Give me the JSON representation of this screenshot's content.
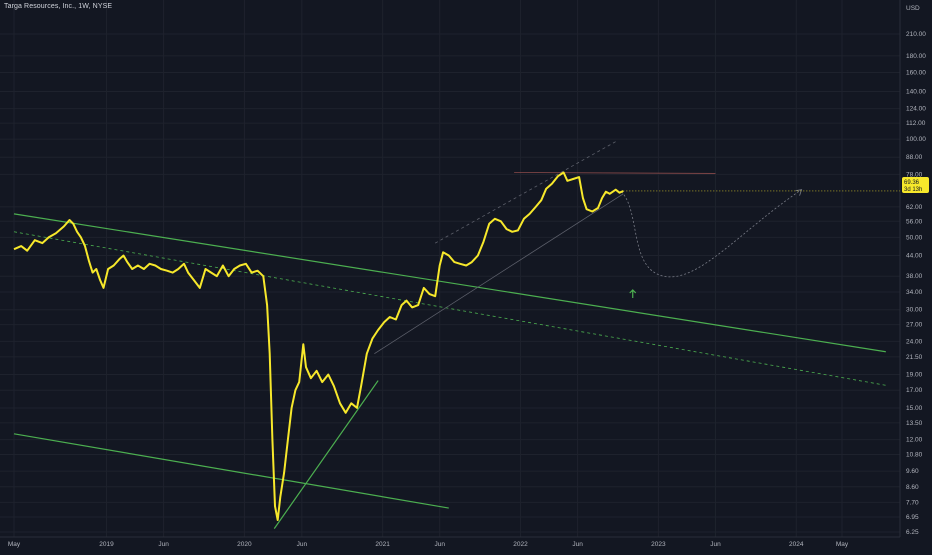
{
  "header": {
    "symbol_title": "Targa Resources, Inc., 1W, NYSE"
  },
  "price_axis": {
    "currency": "USD",
    "last_price": "69.36",
    "countdown": "3d 13h",
    "tag_color": "#f7e82b"
  },
  "chart_data": {
    "type": "line",
    "title": "Targa Resources, Inc., 1W, NYSE",
    "y_scale": "log",
    "ylim": [
      6.25,
      210
    ],
    "y_ticks": [
      210,
      180,
      160,
      140,
      124,
      112,
      100,
      88,
      78,
      62,
      56,
      50,
      44,
      38,
      34,
      30,
      27,
      24,
      21.5,
      19,
      17,
      15,
      13.5,
      12,
      10.8,
      9.6,
      8.6,
      7.7,
      6.95,
      6.25
    ],
    "y_tick_labels": [
      "210.00",
      "180.00",
      "160.00",
      "140.00",
      "124.00",
      "112.00",
      "100.00",
      "88.00",
      "78.00",
      "62.00",
      "56.00",
      "50.00",
      "44.00",
      "38.00",
      "34.00",
      "30.00",
      "27.00",
      "24.00",
      "21.50",
      "19.00",
      "17.00",
      "15.00",
      "13.50",
      "12.00",
      "10.80",
      "9.60",
      "8.60",
      "7.70",
      "6.95",
      "6.25"
    ],
    "xlim": [
      "2018-05-01",
      "2024-09-01"
    ],
    "x_ticks": [
      {
        "date": "2018-05-01",
        "label": "May"
      },
      {
        "date": "2019-01-01",
        "label": "2019"
      },
      {
        "date": "2019-06-01",
        "label": "Jun"
      },
      {
        "date": "2020-01-01",
        "label": "2020"
      },
      {
        "date": "2020-06-01",
        "label": "Jun"
      },
      {
        "date": "2021-01-01",
        "label": "2021"
      },
      {
        "date": "2021-06-01",
        "label": "Jun"
      },
      {
        "date": "2022-01-01",
        "label": "2022"
      },
      {
        "date": "2022-06-01",
        "label": "Jun"
      },
      {
        "date": "2023-01-01",
        "label": "2023"
      },
      {
        "date": "2023-06-01",
        "label": "Jun"
      },
      {
        "date": "2024-01-01",
        "label": "2024"
      },
      {
        "date": "2024-05-01",
        "label": "May"
      }
    ],
    "grid": true,
    "series": [
      {
        "color": "#f7e82b",
        "points": [
          [
            "2018-05-01",
            46
          ],
          [
            "2018-05-20",
            47
          ],
          [
            "2018-06-05",
            45.5
          ],
          [
            "2018-06-25",
            49
          ],
          [
            "2018-07-15",
            48
          ],
          [
            "2018-08-01",
            50
          ],
          [
            "2018-08-20",
            51.5
          ],
          [
            "2018-09-10",
            54
          ],
          [
            "2018-09-25",
            56.5
          ],
          [
            "2018-10-05",
            55
          ],
          [
            "2018-10-15",
            52
          ],
          [
            "2018-10-25",
            50
          ],
          [
            "2018-11-05",
            47
          ],
          [
            "2018-11-15",
            42.5
          ],
          [
            "2018-11-25",
            39
          ],
          [
            "2018-12-05",
            40
          ],
          [
            "2018-12-15",
            37
          ],
          [
            "2018-12-24",
            35
          ],
          [
            "2019-01-05",
            40
          ],
          [
            "2019-01-20",
            41
          ],
          [
            "2019-02-05",
            43
          ],
          [
            "2019-02-15",
            44
          ],
          [
            "2019-02-25",
            42
          ],
          [
            "2019-03-10",
            40
          ],
          [
            "2019-03-25",
            41
          ],
          [
            "2019-04-10",
            40
          ],
          [
            "2019-04-25",
            41.5
          ],
          [
            "2019-05-10",
            41
          ],
          [
            "2019-05-25",
            40
          ],
          [
            "2019-06-10",
            39.5
          ],
          [
            "2019-06-25",
            39
          ],
          [
            "2019-07-10",
            40
          ],
          [
            "2019-07-25",
            41.5
          ],
          [
            "2019-08-05",
            39
          ],
          [
            "2019-08-20",
            37
          ],
          [
            "2019-09-05",
            35
          ],
          [
            "2019-09-20",
            40
          ],
          [
            "2019-10-05",
            39
          ],
          [
            "2019-10-20",
            38
          ],
          [
            "2019-11-05",
            41
          ],
          [
            "2019-11-20",
            38
          ],
          [
            "2019-12-05",
            40
          ],
          [
            "2019-12-20",
            41
          ],
          [
            "2020-01-05",
            41.5
          ],
          [
            "2020-01-20",
            39
          ],
          [
            "2020-02-05",
            39.5
          ],
          [
            "2020-02-20",
            38
          ],
          [
            "2020-03-01",
            31
          ],
          [
            "2020-03-08",
            22
          ],
          [
            "2020-03-15",
            12
          ],
          [
            "2020-03-22",
            7.5
          ],
          [
            "2020-03-29",
            6.8
          ],
          [
            "2020-04-05",
            8
          ],
          [
            "2020-04-15",
            9.5
          ],
          [
            "2020-04-25",
            12
          ],
          [
            "2020-05-05",
            15
          ],
          [
            "2020-05-15",
            17
          ],
          [
            "2020-05-25",
            18
          ],
          [
            "2020-06-05",
            23.5
          ],
          [
            "2020-06-12",
            20
          ],
          [
            "2020-06-25",
            18.5
          ],
          [
            "2020-07-10",
            19.5
          ],
          [
            "2020-07-25",
            18
          ],
          [
            "2020-08-10",
            19
          ],
          [
            "2020-08-25",
            17.5
          ],
          [
            "2020-09-10",
            15.5
          ],
          [
            "2020-09-25",
            14.5
          ],
          [
            "2020-10-10",
            15.5
          ],
          [
            "2020-10-25",
            15
          ],
          [
            "2020-11-05",
            17.5
          ],
          [
            "2020-11-20",
            22
          ],
          [
            "2020-12-05",
            24.5
          ],
          [
            "2020-12-20",
            26
          ],
          [
            "2021-01-05",
            27.5
          ],
          [
            "2021-01-20",
            28.5
          ],
          [
            "2021-02-05",
            28
          ],
          [
            "2021-02-20",
            31
          ],
          [
            "2021-03-05",
            32
          ],
          [
            "2021-03-20",
            30.5
          ],
          [
            "2021-04-05",
            31
          ],
          [
            "2021-04-20",
            35
          ],
          [
            "2021-05-05",
            33.5
          ],
          [
            "2021-05-20",
            33
          ],
          [
            "2021-06-01",
            41
          ],
          [
            "2021-06-10",
            45
          ],
          [
            "2021-06-25",
            44
          ],
          [
            "2021-07-10",
            42
          ],
          [
            "2021-07-25",
            41.5
          ],
          [
            "2021-08-10",
            41
          ],
          [
            "2021-08-25",
            42
          ],
          [
            "2021-09-10",
            44
          ],
          [
            "2021-09-25",
            48.5
          ],
          [
            "2021-10-10",
            55
          ],
          [
            "2021-10-25",
            57
          ],
          [
            "2021-11-10",
            56
          ],
          [
            "2021-11-25",
            53
          ],
          [
            "2021-12-10",
            52
          ],
          [
            "2021-12-25",
            52.5
          ],
          [
            "2022-01-10",
            57
          ],
          [
            "2022-01-25",
            59
          ],
          [
            "2022-02-10",
            62
          ],
          [
            "2022-02-25",
            65
          ],
          [
            "2022-03-10",
            70.5
          ],
          [
            "2022-03-25",
            73
          ],
          [
            "2022-04-10",
            77
          ],
          [
            "2022-04-25",
            79
          ],
          [
            "2022-05-05",
            74.5
          ],
          [
            "2022-05-20",
            75.5
          ],
          [
            "2022-06-05",
            76.5
          ],
          [
            "2022-06-15",
            66
          ],
          [
            "2022-06-25",
            61
          ],
          [
            "2022-07-10",
            60
          ],
          [
            "2022-07-25",
            61.5
          ],
          [
            "2022-08-05",
            66
          ],
          [
            "2022-08-15",
            69
          ],
          [
            "2022-08-25",
            68
          ],
          [
            "2022-09-10",
            70
          ],
          [
            "2022-09-20",
            68.5
          ],
          [
            "2022-09-30",
            69.36
          ]
        ]
      }
    ],
    "annotations": [
      {
        "kind": "line",
        "color": "#4caf50",
        "from": [
          "2018-05-01",
          59
        ],
        "to": [
          "2024-08-25",
          22.3
        ]
      },
      {
        "kind": "line",
        "color": "#4caf50",
        "from": [
          "2018-05-01",
          12.5
        ],
        "to": [
          "2021-06-25",
          7.4
        ]
      },
      {
        "kind": "line",
        "color": "#4caf50",
        "from": [
          "2020-03-20",
          6.4
        ],
        "to": [
          "2020-12-20",
          18.2
        ]
      },
      {
        "kind": "dashed",
        "color": "#4caf50",
        "from": [
          "2018-05-01",
          52
        ],
        "to": [
          "2024-08-25",
          17.6
        ]
      },
      {
        "kind": "dashed",
        "color": "#5d606b",
        "from": [
          "2021-05-20",
          48
        ],
        "to": [
          "2022-09-15",
          99
        ]
      },
      {
        "kind": "line",
        "color": "#5d606b",
        "from": [
          "2020-12-10",
          22
        ],
        "to": [
          "2022-09-30",
          68
        ]
      },
      {
        "kind": "line",
        "color": "#8a4a4a",
        "from": [
          "2021-12-15",
          79
        ],
        "to": [
          "2023-06-01",
          78.5
        ]
      },
      {
        "kind": "dashed-curve",
        "color": "#787b86",
        "points": [
          [
            "2022-09-25",
            69
          ],
          [
            "2022-11-15",
            60
          ],
          [
            "2022-10-15",
            40
          ],
          [
            "2023-01-15",
            38
          ],
          [
            "2024-01-15",
            70
          ]
        ]
      },
      {
        "kind": "arrow",
        "color": "#4caf50",
        "at": [
          "2022-10-25",
          34
        ]
      }
    ]
  }
}
